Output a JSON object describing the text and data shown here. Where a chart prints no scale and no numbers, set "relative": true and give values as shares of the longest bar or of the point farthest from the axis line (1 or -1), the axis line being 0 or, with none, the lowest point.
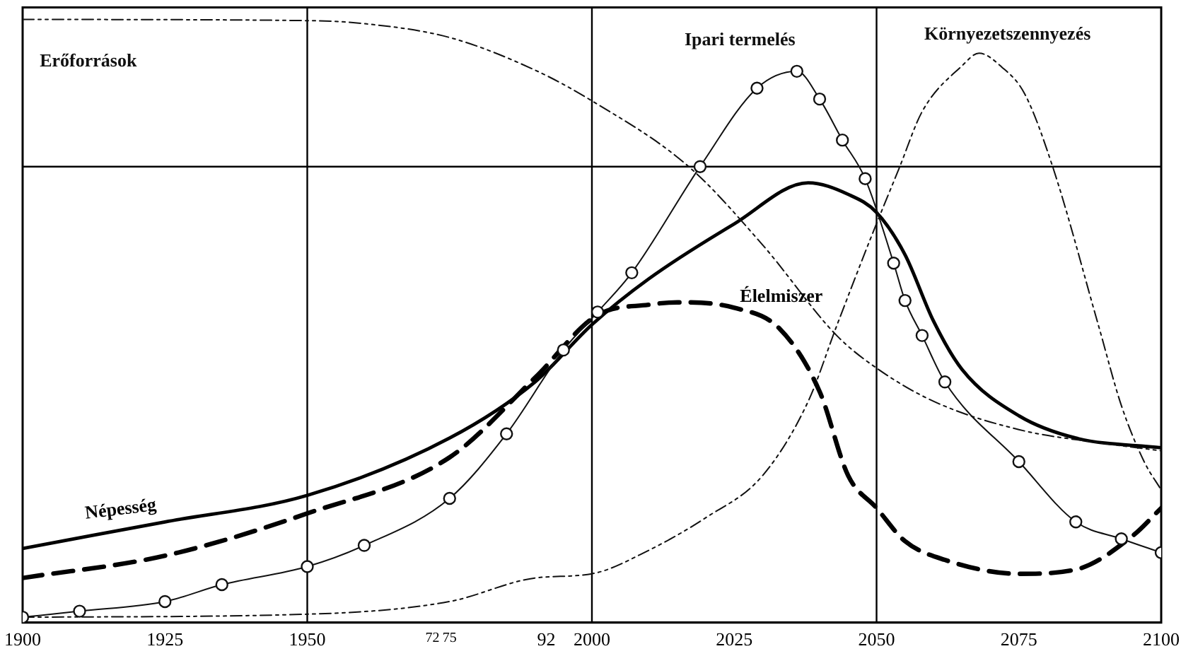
{
  "chart_data": {
    "type": "line",
    "relative": true,
    "legend": false,
    "grid": false,
    "xlim": [
      1900,
      2100
    ],
    "xticks": [
      1900,
      1925,
      1950,
      {
        "value": 1972,
        "label": "72"
      },
      {
        "value": 1975,
        "label": "75"
      },
      {
        "value": 1992,
        "label": "92"
      },
      2000,
      2025,
      2050,
      2075,
      2100
    ],
    "ref_lines": [
      {
        "axis": "x",
        "value": 1950,
        "color": "#000000"
      },
      {
        "axis": "x",
        "value": 2000,
        "color": "#000000"
      },
      {
        "axis": "x",
        "value": 2050,
        "color": "#000000"
      },
      {
        "axis": "y",
        "value": 0.756,
        "color": "#000000"
      }
    ],
    "series": [
      {
        "name": "Erőforrások",
        "color": "#111111",
        "line_style": "dotted",
        "marker": "none",
        "x": [
          1900,
          1950,
          1960,
          1975,
          1990,
          2000,
          2017,
          2030,
          2043,
          2050,
          2060,
          2075,
          2090,
          2100
        ],
        "values": [
          1.0,
          0.998,
          0.993,
          0.97,
          0.916,
          0.865,
          0.756,
          0.626,
          0.476,
          0.422,
          0.367,
          0.32,
          0.297,
          0.285
        ]
      },
      {
        "name": "Élelmiszer",
        "color": "#000000",
        "line_style": "dashed",
        "marker": "none",
        "x": [
          1900,
          1925,
          1950,
          1975,
          1990,
          2001,
          2010,
          2015,
          2025,
          2033,
          2040,
          2045,
          2050,
          2055,
          2062,
          2075,
          2085,
          2095,
          2100
        ],
        "values": [
          0.074,
          0.111,
          0.181,
          0.274,
          0.406,
          0.51,
          0.527,
          0.531,
          0.522,
          0.487,
          0.383,
          0.244,
          0.19,
          0.135,
          0.104,
          0.081,
          0.088,
          0.144,
          0.19
        ]
      },
      {
        "name": "Népesség",
        "color": "#000000",
        "line_style": "solid",
        "marker": "none",
        "x": [
          1900,
          1925,
          1950,
          1975,
          1990,
          2000,
          2010,
          2025,
          2038,
          2045,
          2050,
          2055,
          2060,
          2065,
          2075,
          2085,
          2100
        ],
        "values": [
          0.123,
          0.167,
          0.211,
          0.306,
          0.399,
          0.494,
          0.57,
          0.661,
          0.729,
          0.71,
          0.68,
          0.61,
          0.5,
          0.42,
          0.343,
          0.306,
          0.29
        ]
      },
      {
        "name": "Ipari termelés",
        "color": "#111111",
        "line_style": "solid",
        "marker": "circle",
        "x": [
          1900,
          1910,
          1925,
          1935,
          1950,
          1960,
          1975,
          1985,
          1995,
          2001,
          2007,
          2019,
          2029,
          2036,
          2040,
          2044,
          2048,
          2053,
          2055,
          2058,
          2062,
          2075,
          2085,
          2093,
          2100
        ],
        "values": [
          0.009,
          0.019,
          0.035,
          0.063,
          0.093,
          0.128,
          0.206,
          0.313,
          0.452,
          0.515,
          0.58,
          0.756,
          0.886,
          0.914,
          0.868,
          0.8,
          0.736,
          0.596,
          0.534,
          0.476,
          0.399,
          0.267,
          0.167,
          0.139,
          0.116
        ]
      },
      {
        "name": "Környezetszennyezés",
        "color": "#111111",
        "line_style": "dotted",
        "marker": "none",
        "x": [
          1900,
          1950,
          1975,
          1990,
          2000,
          2010,
          2020,
          2030,
          2038,
          2043,
          2049,
          2054,
          2058,
          2065,
          2068,
          2072,
          2076,
          2081,
          2089,
          2093,
          2097,
          2100
        ],
        "values": [
          0.009,
          0.014,
          0.035,
          0.074,
          0.081,
          0.12,
          0.174,
          0.244,
          0.367,
          0.492,
          0.638,
          0.754,
          0.847,
          0.923,
          0.944,
          0.921,
          0.877,
          0.754,
          0.492,
          0.36,
          0.267,
          0.22
        ]
      }
    ]
  }
}
